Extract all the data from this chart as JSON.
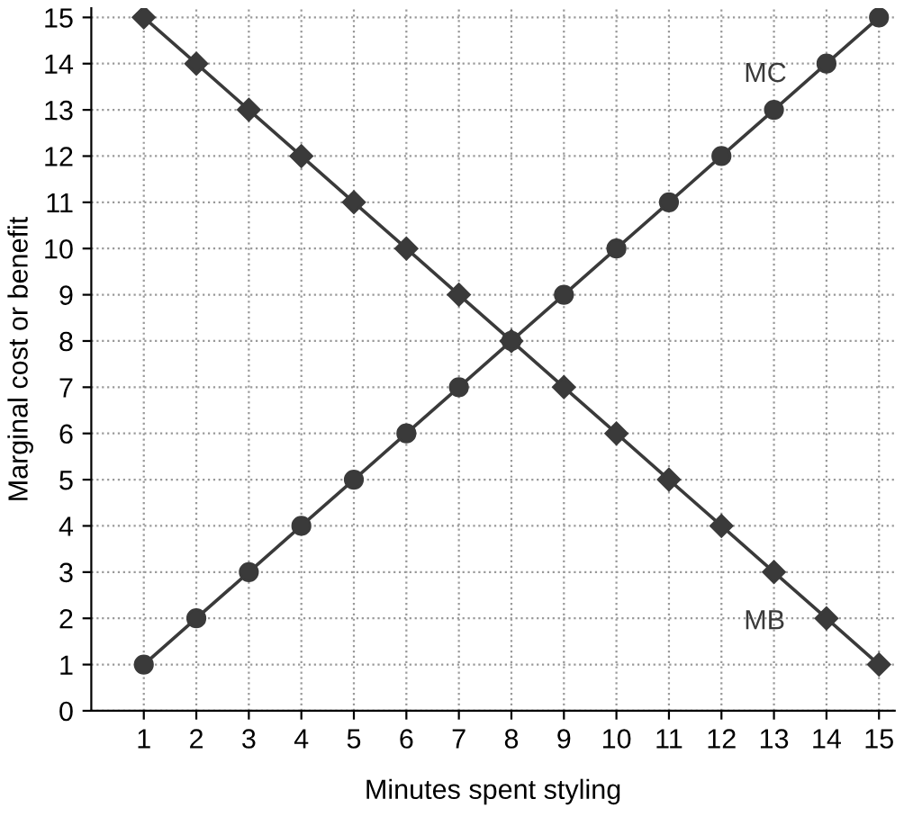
{
  "chart_data": {
    "type": "line",
    "xlabel": "Minutes spent styling",
    "ylabel": "Marginal cost or benefit",
    "x": [
      1,
      2,
      3,
      4,
      5,
      6,
      7,
      8,
      9,
      10,
      11,
      12,
      13,
      14,
      15
    ],
    "series": [
      {
        "name": "MC",
        "color": "#3a3a3a",
        "marker": "circle",
        "values": [
          1,
          2,
          3,
          4,
          5,
          6,
          7,
          8,
          9,
          10,
          11,
          12,
          13,
          14,
          15
        ]
      },
      {
        "name": "MB",
        "color": "#3a3a3a",
        "marker": "diamond",
        "values": [
          15,
          14,
          13,
          12,
          11,
          10,
          9,
          8,
          7,
          6,
          5,
          4,
          3,
          2,
          1
        ]
      }
    ],
    "xlim": [
      0,
      15.3
    ],
    "ylim": [
      0,
      15.2
    ],
    "xticks": [
      1,
      2,
      3,
      4,
      5,
      6,
      7,
      8,
      9,
      10,
      11,
      12,
      13,
      14,
      15
    ],
    "yticks": [
      0,
      1,
      2,
      3,
      4,
      5,
      6,
      7,
      8,
      9,
      10,
      11,
      12,
      13,
      14,
      15
    ],
    "grid": true,
    "line_style": "solid"
  }
}
